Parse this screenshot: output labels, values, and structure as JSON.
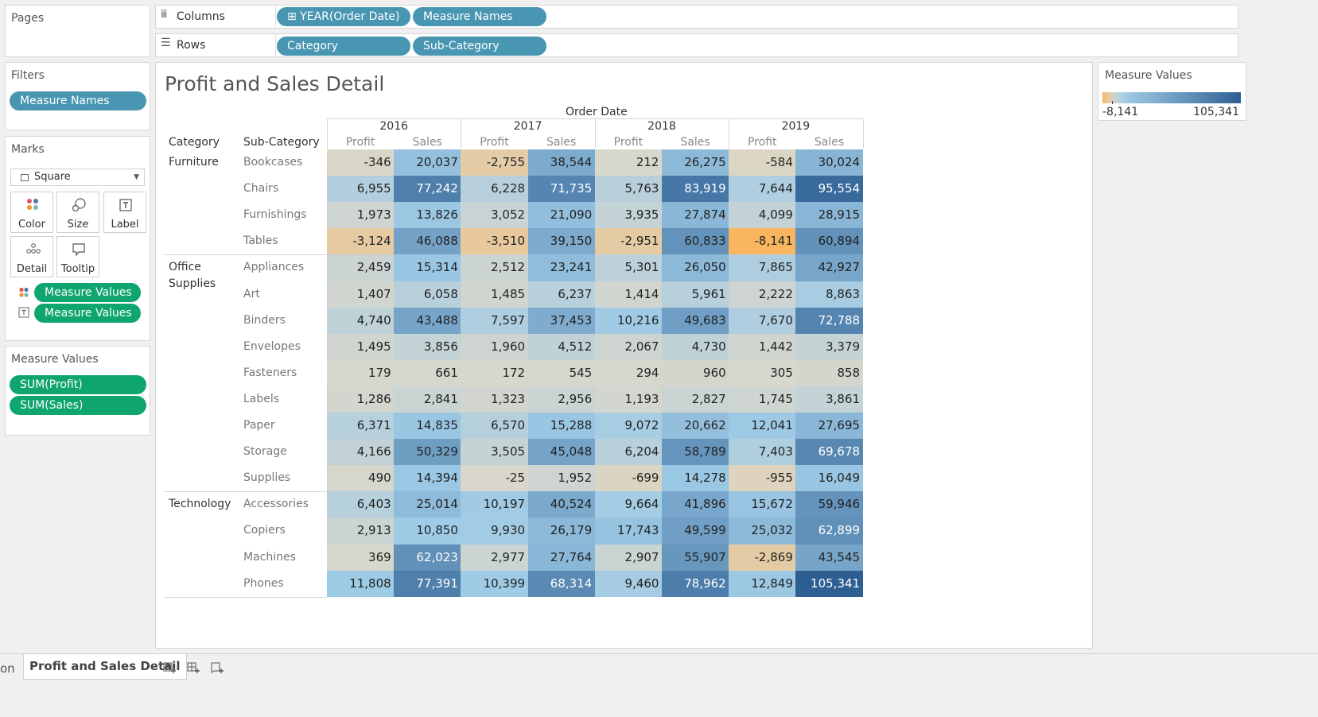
{
  "panels": {
    "pages_title": "Pages",
    "filters_title": "Filters",
    "marks_title": "Marks",
    "measure_values_title": "Measure Values"
  },
  "filters": {
    "pill": "Measure Names"
  },
  "marks": {
    "type": "Square",
    "buttons": [
      {
        "label": "Color"
      },
      {
        "label": "Size"
      },
      {
        "label": "Label"
      },
      {
        "label": "Detail"
      },
      {
        "label": "Tooltip"
      }
    ],
    "pills": [
      "Measure Values",
      "Measure Values"
    ]
  },
  "measure_values": {
    "pills": [
      "SUM(Profit)",
      "SUM(Sales)"
    ]
  },
  "shelves": {
    "columns_label": "Columns",
    "columns_icon": "ⅲ",
    "rows_label": "Rows",
    "rows_icon": "☰",
    "columns_pills": [
      "⊞ YEAR(Order Date)",
      "Measure Names"
    ],
    "rows_pills": [
      "Category",
      "Sub-Category"
    ]
  },
  "legend": {
    "title": "Measure Values",
    "min_label": "-8,141",
    "max_label": "105,341",
    "min": -8141,
    "max": 105341,
    "neg_color": "#f9b65e",
    "zero_color": "#d9d7cc",
    "low_color": "#9fcbe6",
    "high_color": "#2d5f93"
  },
  "view": {
    "title": "Profit and Sales Detail",
    "column_group": "Order Date",
    "category_header": "Category",
    "subcategory_header": "Sub-Category"
  },
  "chart_data": {
    "type": "table",
    "title": "Profit and Sales Detail",
    "years": [
      "2016",
      "2017",
      "2018",
      "2019"
    ],
    "measures": [
      "Profit",
      "Sales"
    ],
    "categories": [
      {
        "name": "Furniture",
        "rows": [
          {
            "sub": "Bookcases",
            "values": [
              -346,
              20037,
              -2755,
              38544,
              212,
              26275,
              -584,
              30024
            ],
            "labels": [
              "-346",
              "20,037",
              "-2,755",
              "38,544",
              "212",
              "26,275",
              "-584",
              "30,024"
            ]
          },
          {
            "sub": "Chairs",
            "values": [
              6955,
              77242,
              6228,
              71735,
              5763,
              83919,
              7644,
              95554
            ],
            "labels": [
              "6,955",
              "77,242",
              "6,228",
              "71,735",
              "5,763",
              "83,919",
              "7,644",
              "95,554"
            ]
          },
          {
            "sub": "Furnishings",
            "values": [
              1973,
              13826,
              3052,
              21090,
              3935,
              27874,
              4099,
              28915
            ],
            "labels": [
              "1,973",
              "13,826",
              "3,052",
              "21,090",
              "3,935",
              "27,874",
              "4,099",
              "28,915"
            ]
          },
          {
            "sub": "Tables",
            "values": [
              -3124,
              46088,
              -3510,
              39150,
              -2951,
              60833,
              -8141,
              60894
            ],
            "labels": [
              "-3,124",
              "46,088",
              "-3,510",
              "39,150",
              "-2,951",
              "60,833",
              "-8,141",
              "60,894"
            ]
          }
        ]
      },
      {
        "name": "Office Supplies",
        "rows": [
          {
            "sub": "Appliances",
            "values": [
              2459,
              15314,
              2512,
              23241,
              5301,
              26050,
              7865,
              42927
            ],
            "labels": [
              "2,459",
              "15,314",
              "2,512",
              "23,241",
              "5,301",
              "26,050",
              "7,865",
              "42,927"
            ]
          },
          {
            "sub": "Art",
            "values": [
              1407,
              6058,
              1485,
              6237,
              1414,
              5961,
              2222,
              8863
            ],
            "labels": [
              "1,407",
              "6,058",
              "1,485",
              "6,237",
              "1,414",
              "5,961",
              "2,222",
              "8,863"
            ]
          },
          {
            "sub": "Binders",
            "values": [
              4740,
              43488,
              7597,
              37453,
              10216,
              49683,
              7670,
              72788
            ],
            "labels": [
              "4,740",
              "43,488",
              "7,597",
              "37,453",
              "10,216",
              "49,683",
              "7,670",
              "72,788"
            ]
          },
          {
            "sub": "Envelopes",
            "values": [
              1495,
              3856,
              1960,
              4512,
              2067,
              4730,
              1442,
              3379
            ],
            "labels": [
              "1,495",
              "3,856",
              "1,960",
              "4,512",
              "2,067",
              "4,730",
              "1,442",
              "3,379"
            ]
          },
          {
            "sub": "Fasteners",
            "values": [
              179,
              661,
              172,
              545,
              294,
              960,
              305,
              858
            ],
            "labels": [
              "179",
              "661",
              "172",
              "545",
              "294",
              "960",
              "305",
              "858"
            ]
          },
          {
            "sub": "Labels",
            "values": [
              1286,
              2841,
              1323,
              2956,
              1193,
              2827,
              1745,
              3861
            ],
            "labels": [
              "1,286",
              "2,841",
              "1,323",
              "2,956",
              "1,193",
              "2,827",
              "1,745",
              "3,861"
            ]
          },
          {
            "sub": "Paper",
            "values": [
              6371,
              14835,
              6570,
              15288,
              9072,
              20662,
              12041,
              27695
            ],
            "labels": [
              "6,371",
              "14,835",
              "6,570",
              "15,288",
              "9,072",
              "20,662",
              "12,041",
              "27,695"
            ]
          },
          {
            "sub": "Storage",
            "values": [
              4166,
              50329,
              3505,
              45048,
              6204,
              58789,
              7403,
              69678
            ],
            "labels": [
              "4,166",
              "50,329",
              "3,505",
              "45,048",
              "6,204",
              "58,789",
              "7,403",
              "69,678"
            ]
          },
          {
            "sub": "Supplies",
            "values": [
              490,
              14394,
              -25,
              1952,
              -699,
              14278,
              -955,
              16049
            ],
            "labels": [
              "490",
              "14,394",
              "-25",
              "1,952",
              "-699",
              "14,278",
              "-955",
              "16,049"
            ]
          }
        ]
      },
      {
        "name": "Technology",
        "rows": [
          {
            "sub": "Accessories",
            "values": [
              6403,
              25014,
              10197,
              40524,
              9664,
              41896,
              15672,
              59946
            ],
            "labels": [
              "6,403",
              "25,014",
              "10,197",
              "40,524",
              "9,664",
              "41,896",
              "15,672",
              "59,946"
            ]
          },
          {
            "sub": "Copiers",
            "values": [
              2913,
              10850,
              9930,
              26179,
              17743,
              49599,
              25032,
              62899
            ],
            "labels": [
              "2,913",
              "10,850",
              "9,930",
              "26,179",
              "17,743",
              "49,599",
              "25,032",
              "62,899"
            ]
          },
          {
            "sub": "Machines",
            "values": [
              369,
              62023,
              2977,
              27764,
              2907,
              55907,
              -2869,
              43545
            ],
            "labels": [
              "369",
              "62,023",
              "2,977",
              "27,764",
              "2,907",
              "55,907",
              "-2,869",
              "43,545"
            ]
          },
          {
            "sub": "Phones",
            "values": [
              11808,
              77391,
              10399,
              68314,
              9460,
              78962,
              12849,
              105341
            ],
            "labels": [
              "11,808",
              "77,391",
              "10,399",
              "68,314",
              "9,460",
              "78,962",
              "12,849",
              "105,341"
            ]
          }
        ]
      }
    ]
  },
  "tabs": {
    "left_label": "on",
    "active_label": "Profit and Sales Detail",
    "icons": [
      "new-worksheet-icon",
      "new-dashboard-icon",
      "new-story-icon"
    ]
  }
}
